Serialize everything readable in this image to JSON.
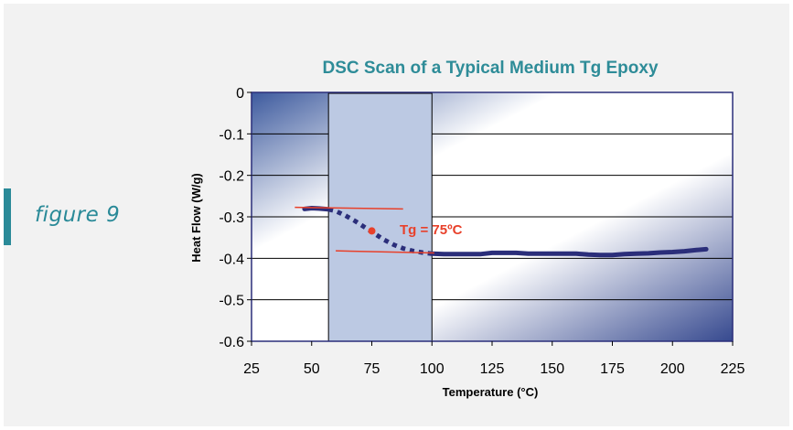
{
  "figure_label": "figure 9",
  "chart_data": {
    "type": "line",
    "title": "DSC Scan of a Typical Medium Tg Epoxy",
    "xlabel": "Temperature (°C)",
    "ylabel": "Heat Flow (W/g)",
    "xlim": [
      25,
      225
    ],
    "ylim": [
      -0.6,
      0
    ],
    "xticks": [
      25,
      50,
      75,
      100,
      125,
      150,
      175,
      200,
      225
    ],
    "yticks": [
      0,
      -0.1,
      -0.2,
      -0.3,
      -0.4,
      -0.5,
      -0.6
    ],
    "ytick_labels": [
      "0",
      "-0.1",
      "-0.2",
      "-0.3",
      "-0.4",
      "-0.5",
      "-0.6"
    ],
    "grid": "horizontal",
    "highlight_region": [
      57,
      100
    ],
    "series": [
      {
        "x": [
          47,
          50,
          53,
          57,
          60,
          64,
          68,
          72,
          76,
          80,
          84,
          88,
          92,
          96,
          100,
          105,
          110,
          115,
          120,
          125,
          130,
          135,
          140,
          145,
          150,
          155,
          160,
          165,
          170,
          175,
          180,
          185,
          190,
          195,
          200,
          205,
          210,
          214
        ],
        "y": [
          -0.281,
          -0.279,
          -0.28,
          -0.282,
          -0.286,
          -0.297,
          -0.31,
          -0.325,
          -0.34,
          -0.355,
          -0.367,
          -0.376,
          -0.382,
          -0.386,
          -0.389,
          -0.39,
          -0.39,
          -0.39,
          -0.39,
          -0.387,
          -0.387,
          -0.387,
          -0.389,
          -0.389,
          -0.389,
          -0.389,
          -0.389,
          -0.391,
          -0.392,
          -0.392,
          -0.39,
          -0.389,
          -0.388,
          -0.386,
          -0.385,
          -0.383,
          -0.38,
          -0.378
        ],
        "solid_ranges": [
          [
            47,
            57
          ],
          [
            100,
            214
          ]
        ],
        "dashed_range": [
          57,
          100
        ],
        "color": "#2b2e7a"
      }
    ],
    "tangent_lines": [
      {
        "x": [
          43,
          88
        ],
        "y": [
          -0.277,
          -0.281
        ]
      },
      {
        "x": [
          60,
          101
        ],
        "y": [
          -0.382,
          -0.387
        ]
      }
    ],
    "tg_point": {
      "x": 75,
      "y": -0.334
    },
    "annotation": "Tg = 75ºC",
    "annotation_color": "#e8402a"
  }
}
